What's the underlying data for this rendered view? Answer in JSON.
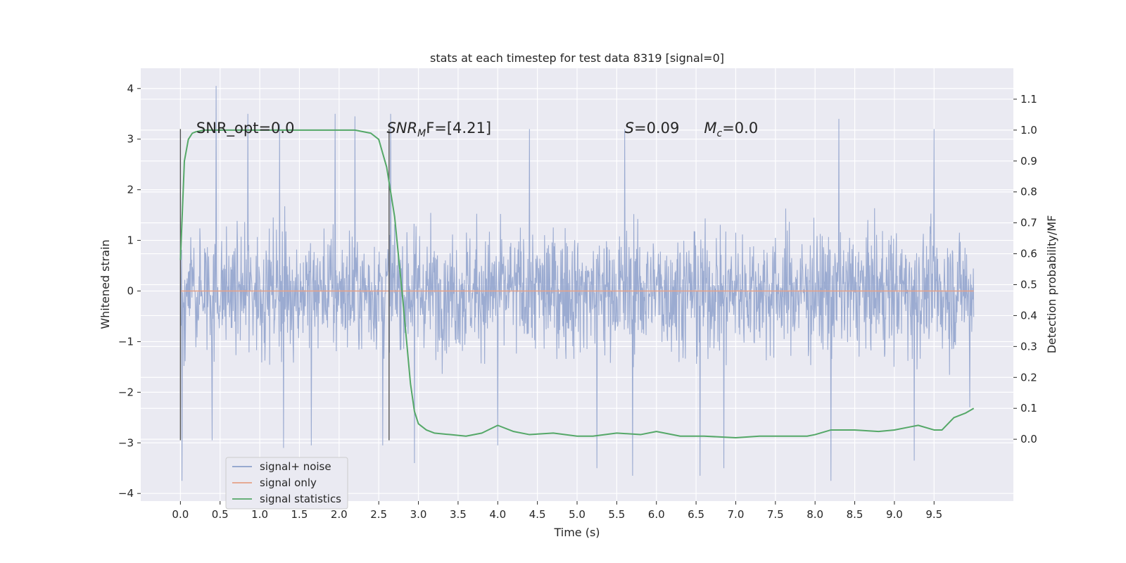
{
  "chart_data": {
    "type": "line",
    "title": "stats at each timestep for test data 8319 [signal=0]",
    "xlabel": "Time (s)",
    "ylabel": "Whitened strain",
    "y2label": "Detection probability/MF",
    "xlim": [
      -0.5,
      10.5
    ],
    "ylim": [
      -4.15,
      4.4
    ],
    "y2lim": [
      -0.2,
      1.2
    ],
    "xticks": [
      0.0,
      0.5,
      1.0,
      1.5,
      2.0,
      2.5,
      3.0,
      3.5,
      4.0,
      4.5,
      5.0,
      5.5,
      6.0,
      6.5,
      7.0,
      7.5,
      8.0,
      8.5,
      9.0,
      9.5
    ],
    "xtick_labels": [
      "0.0",
      "0.5",
      "1.0",
      "1.5",
      "2.0",
      "2.5",
      "3.0",
      "3.5",
      "4.0",
      "4.5",
      "5.0",
      "5.5",
      "6.0",
      "6.5",
      "7.0",
      "7.5",
      "8.0",
      "8.5",
      "9.0",
      "9.5"
    ],
    "yticks": [
      -4,
      -3,
      -2,
      -1,
      0,
      1,
      2,
      3,
      4
    ],
    "ytick_labels": [
      "−4",
      "−3",
      "−2",
      "−1",
      "0",
      "1",
      "2",
      "3",
      "4"
    ],
    "y2ticks": [
      0.0,
      0.1,
      0.2,
      0.3,
      0.4,
      0.5,
      0.6,
      0.7,
      0.8,
      0.9,
      1.0,
      1.1
    ],
    "y2tick_labels": [
      "0.0",
      "0.1",
      "0.2",
      "0.3",
      "0.4",
      "0.5",
      "0.6",
      "0.7",
      "0.8",
      "0.9",
      "1.0",
      "1.1"
    ],
    "grid": true,
    "legend_position": "lower-left",
    "series": [
      {
        "name": "signal+ noise",
        "color": "#8da0cb",
        "axis": "left",
        "description_points": "noise envelope about ±2",
        "peak_x": [
          0.45,
          0.85,
          1.25,
          1.95,
          2.2,
          2.65,
          4.4,
          5.6,
          6.55,
          8.3,
          9.5,
          9.95
        ],
        "peak_y": [
          4.05,
          3.5,
          3.3,
          3.5,
          3.45,
          3.5,
          3.2,
          3.2,
          3.3,
          3.4,
          3.2,
          2.9
        ],
        "trough_x": [
          0.02,
          0.4,
          1.3,
          1.65,
          2.55,
          2.95,
          4.0,
          5.25,
          5.7,
          6.55,
          6.85,
          8.2,
          9.25,
          9.95
        ],
        "trough_y": [
          -3.75,
          -2.95,
          -3.1,
          -3.05,
          -3.05,
          -3.4,
          -3.05,
          -3.5,
          -3.65,
          -3.65,
          -3.5,
          -3.75,
          -3.35,
          -2.3
        ]
      },
      {
        "name": "signal only",
        "color": "#e5a187",
        "axis": "left",
        "x": [
          0.0,
          10.0
        ],
        "y": [
          0.0,
          0.0
        ]
      },
      {
        "name": "signal statistics",
        "color": "#55a868",
        "axis": "right",
        "x": [
          0.0,
          0.05,
          0.1,
          0.15,
          0.2,
          0.3,
          0.5,
          1.0,
          1.5,
          2.0,
          2.2,
          2.4,
          2.5,
          2.6,
          2.7,
          2.8,
          2.9,
          2.95,
          3.0,
          3.1,
          3.2,
          3.4,
          3.6,
          3.8,
          4.0,
          4.2,
          4.4,
          4.7,
          5.0,
          5.2,
          5.5,
          5.8,
          6.0,
          6.3,
          6.6,
          7.0,
          7.3,
          7.6,
          7.9,
          8.0,
          8.2,
          8.5,
          8.8,
          9.0,
          9.2,
          9.3,
          9.5,
          9.6,
          9.75,
          9.9,
          10.0
        ],
        "y": [
          0.58,
          0.9,
          0.97,
          0.99,
          0.995,
          1.0,
          1.0,
          1.0,
          1.0,
          1.0,
          1.0,
          0.99,
          0.97,
          0.88,
          0.72,
          0.46,
          0.18,
          0.09,
          0.05,
          0.03,
          0.02,
          0.015,
          0.01,
          0.02,
          0.045,
          0.025,
          0.015,
          0.02,
          0.01,
          0.01,
          0.02,
          0.015,
          0.025,
          0.01,
          0.01,
          0.005,
          0.01,
          0.01,
          0.01,
          0.015,
          0.03,
          0.03,
          0.025,
          0.03,
          0.04,
          0.045,
          0.03,
          0.03,
          0.07,
          0.085,
          0.1
        ]
      }
    ],
    "vlines": [
      {
        "x": 0.0,
        "y_range": [
          -2.95,
          3.2
        ]
      },
      {
        "x": 2.63,
        "y_range": [
          -2.95,
          3.2
        ]
      }
    ],
    "annotations": [
      {
        "x": 0.2,
        "y": 3.12,
        "text": "SNR_opt=0.0"
      },
      {
        "x": 2.6,
        "y": 3.12,
        "main": "SNR",
        "sub": "M",
        "rest": "F=[4.21]"
      },
      {
        "x": 5.6,
        "y": 3.12,
        "main": "S",
        "sub": "",
        "rest": "=0.09"
      },
      {
        "x": 6.6,
        "y": 3.12,
        "main": "M",
        "sub": "c",
        "rest": "=0.0"
      }
    ]
  },
  "legend": {
    "items": [
      {
        "label": "signal+ noise",
        "color": "#8da0cb"
      },
      {
        "label": "signal only",
        "color": "#e5a187"
      },
      {
        "label": "signal statistics",
        "color": "#55a868"
      }
    ]
  }
}
